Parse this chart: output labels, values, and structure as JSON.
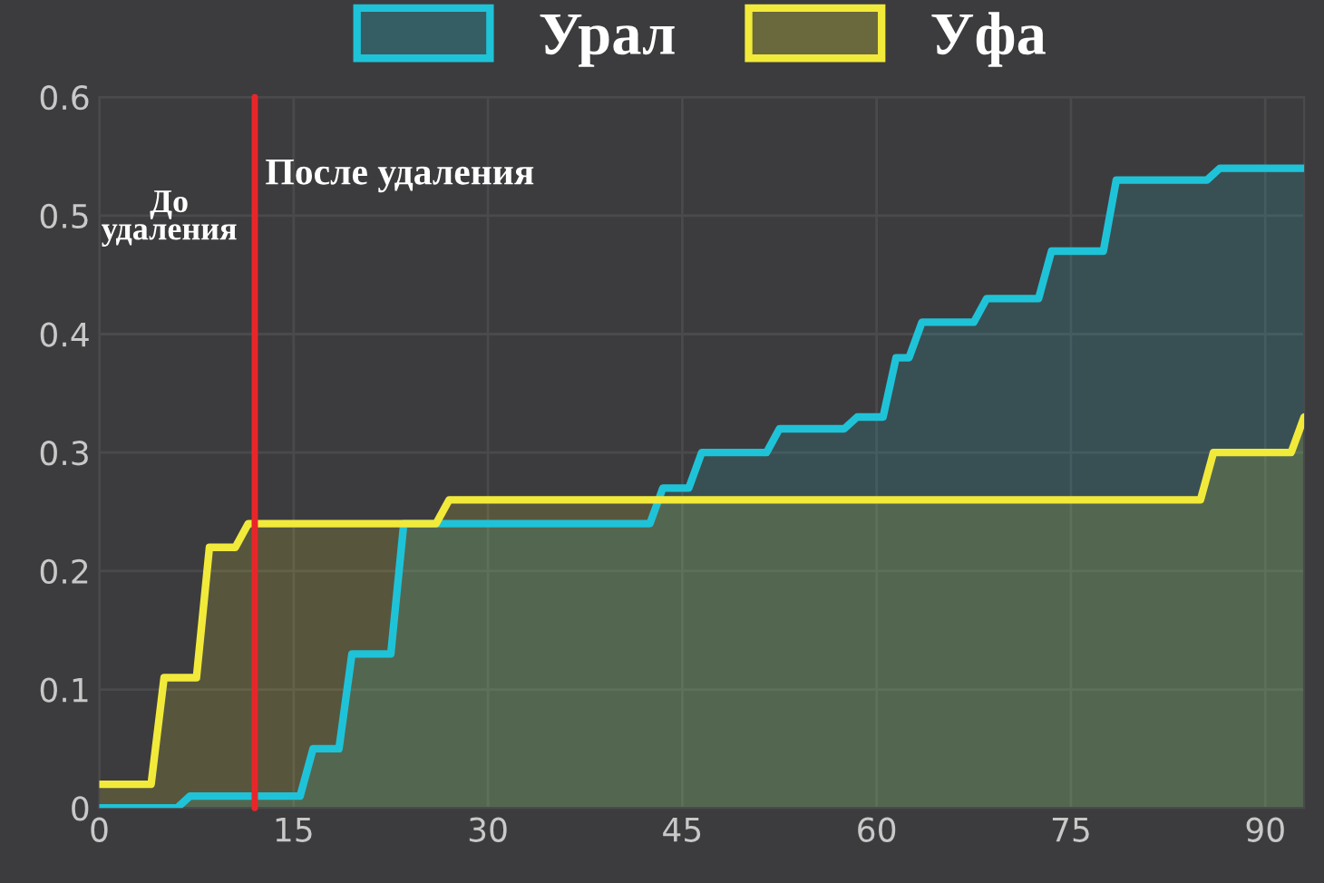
{
  "chart_data": {
    "type": "area",
    "x": [
      0,
      6,
      7,
      15.5,
      16.5,
      18.5,
      19.5,
      22.5,
      23.5,
      42.5,
      43.5,
      45.5,
      46.5,
      51.5,
      52.5,
      57.5,
      58.5,
      60.5,
      61.5,
      62.5,
      63.5,
      67.5,
      68.5,
      72.5,
      73.5,
      77.5,
      78.5,
      85.5,
      86.5,
      93
    ],
    "series": [
      {
        "name": "Урал",
        "color": "#1fc3d8",
        "values": [
          0,
          0,
          0.01,
          0.01,
          0.05,
          0.05,
          0.13,
          0.13,
          0.24,
          0.24,
          0.27,
          0.27,
          0.3,
          0.3,
          0.32,
          0.32,
          0.33,
          0.33,
          0.38,
          0.38,
          0.41,
          0.41,
          0.43,
          0.43,
          0.47,
          0.47,
          0.53,
          0.53,
          0.54,
          0.54
        ]
      },
      {
        "name": "Уфа",
        "color": "#f2ea3a",
        "x": [
          0,
          4,
          5,
          7.5,
          8.5,
          10.5,
          11.5,
          26,
          27,
          85,
          86,
          92,
          93
        ],
        "values": [
          0.02,
          0.02,
          0.11,
          0.11,
          0.22,
          0.22,
          0.24,
          0.24,
          0.26,
          0.26,
          0.3,
          0.3,
          0.33
        ]
      }
    ],
    "xlim": [
      0,
      93
    ],
    "xticks": [
      0,
      15,
      30,
      45,
      60,
      75,
      90
    ],
    "ylim": [
      0,
      0.6
    ],
    "yticks": [
      0,
      0.1,
      0.2,
      0.3,
      0.4,
      0.5,
      0.6
    ],
    "ref_lines": [
      {
        "axis": "x",
        "value": 12,
        "color": "#e8262a"
      }
    ],
    "annotations": [
      "До\nудаления",
      "После удаления"
    ],
    "grid": true,
    "legend": "top"
  }
}
